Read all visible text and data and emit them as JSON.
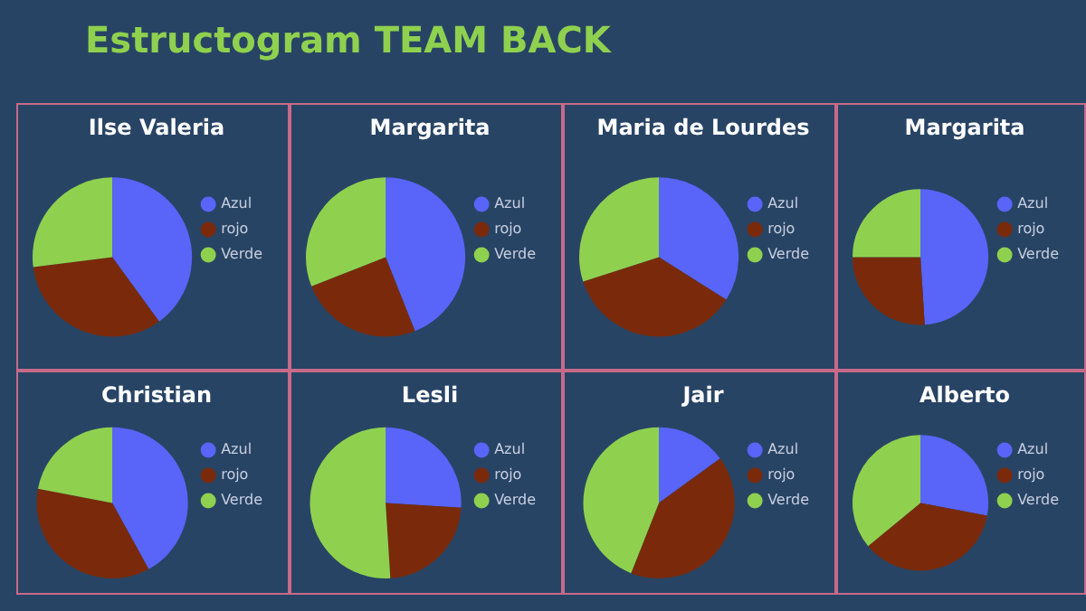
{
  "chart_data": [
    {
      "type": "pie",
      "title": "Ilse Valeria",
      "annotations": [
        "Estructogram TEAM BACK"
      ],
      "categories": [
        "Azul",
        "rojo",
        "Verde"
      ],
      "values": [
        40,
        33,
        27
      ],
      "colors": [
        "#5865f8",
        "#7a2a0a",
        "#8fd14f"
      ],
      "legend": "right"
    },
    {
      "type": "pie",
      "title": "Margarita",
      "categories": [
        "Azul",
        "rojo",
        "Verde"
      ],
      "values": [
        44,
        25,
        31
      ],
      "colors": [
        "#5865f8",
        "#7a2a0a",
        "#8fd14f"
      ],
      "legend": "right"
    },
    {
      "type": "pie",
      "title": "Maria de Lourdes",
      "categories": [
        "Azul",
        "rojo",
        "Verde"
      ],
      "values": [
        34,
        36,
        30
      ],
      "colors": [
        "#5865f8",
        "#7a2a0a",
        "#8fd14f"
      ],
      "legend": "right"
    },
    {
      "type": "pie",
      "title": "Margarita",
      "categories": [
        "Azul",
        "rojo",
        "Verde"
      ],
      "values": [
        49,
        26,
        25
      ],
      "colors": [
        "#5865f8",
        "#7a2a0a",
        "#8fd14f"
      ],
      "legend": "right"
    },
    {
      "type": "pie",
      "title": "Christian",
      "categories": [
        "Azul",
        "rojo",
        "Verde"
      ],
      "values": [
        42,
        36,
        22
      ],
      "colors": [
        "#5865f8",
        "#7a2a0a",
        "#8fd14f"
      ],
      "legend": "right"
    },
    {
      "type": "pie",
      "title": "Lesli",
      "categories": [
        "Azul",
        "rojo",
        "Verde"
      ],
      "values": [
        26,
        23,
        51
      ],
      "colors": [
        "#5865f8",
        "#7a2a0a",
        "#8fd14f"
      ],
      "legend": "right"
    },
    {
      "type": "pie",
      "title": "Jair",
      "categories": [
        "Azul",
        "rojo",
        "Verde"
      ],
      "values": [
        15,
        41,
        44
      ],
      "colors": [
        "#5865f8",
        "#7a2a0a",
        "#8fd14f"
      ],
      "legend": "right"
    },
    {
      "type": "pie",
      "title": "Alberto",
      "categories": [
        "Azul",
        "rojo",
        "Verde"
      ],
      "values": [
        28,
        36,
        36
      ],
      "colors": [
        "#5865f8",
        "#7a2a0a",
        "#8fd14f"
      ],
      "legend": "right"
    }
  ]
}
